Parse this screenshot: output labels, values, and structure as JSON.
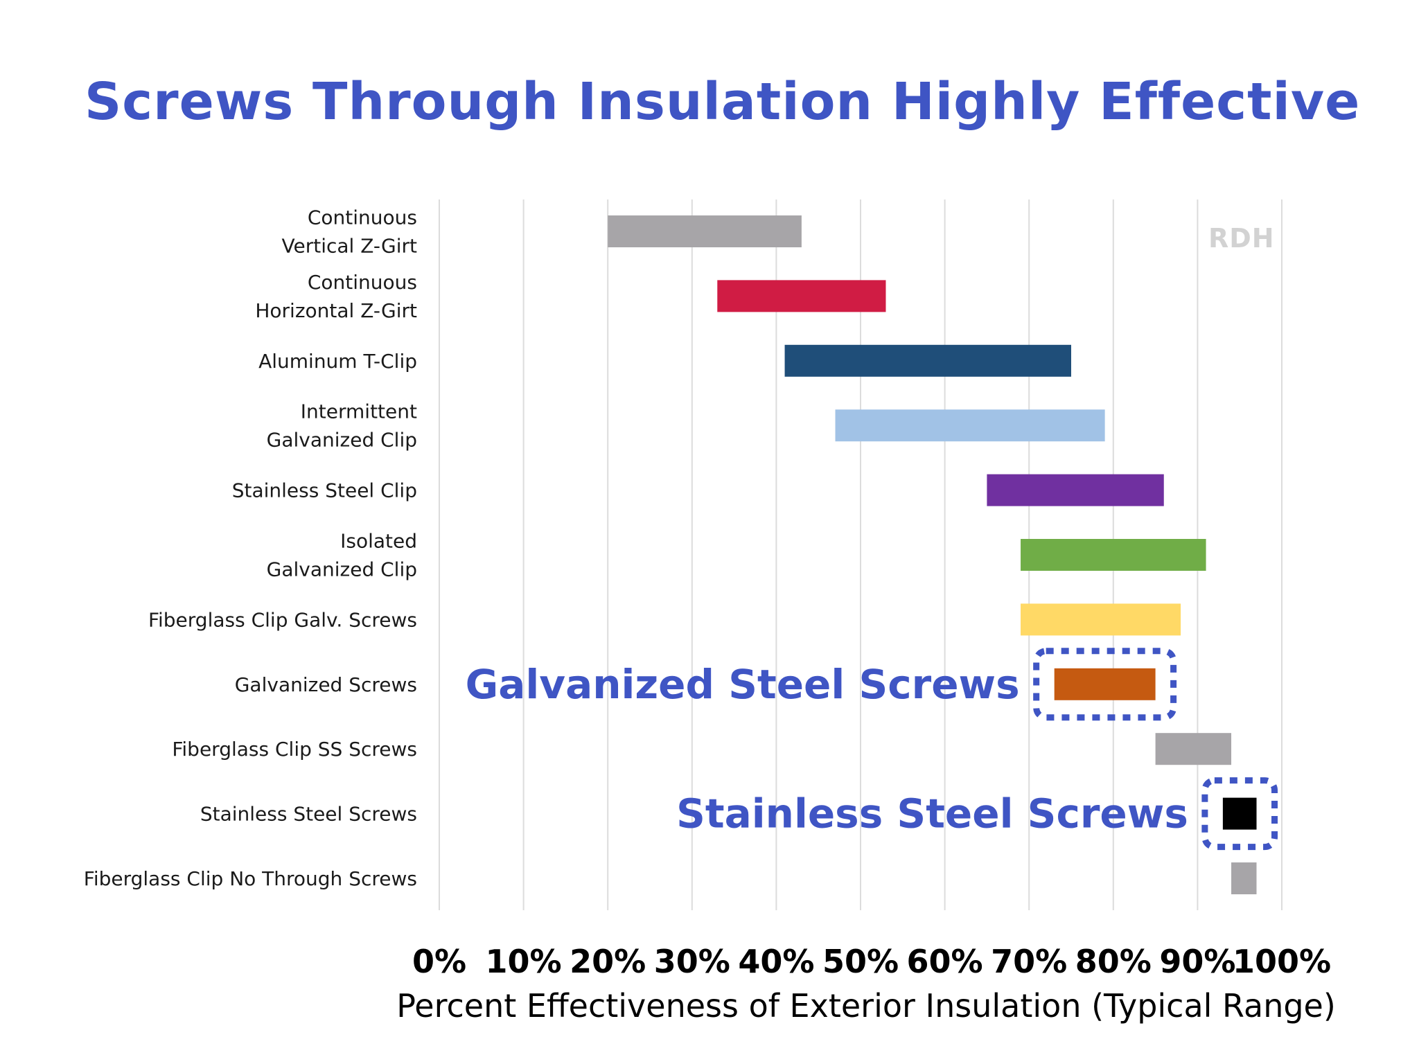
{
  "chart_data": {
    "type": "bar",
    "orientation": "horizontal-range",
    "title": "Screws Through Insulation Highly Effective",
    "xlabel": "Percent Effectiveness of Exterior Insulation (Typical Range)",
    "xlim": [
      0,
      100
    ],
    "x_ticks": [
      "0%",
      "10%",
      "20%",
      "30%",
      "40%",
      "50%",
      "60%",
      "70%",
      "80%",
      "90%",
      "100%"
    ],
    "grid": "vertical",
    "watermark": "RDH",
    "categories": [
      {
        "label": [
          "Continuous",
          "Vertical Z-Girt"
        ],
        "low": 20,
        "high": 43,
        "color": "#a7a5a8"
      },
      {
        "label": [
          "Continuous",
          "Horizontal Z-Girt"
        ],
        "low": 33,
        "high": 53,
        "color": "#d01c44"
      },
      {
        "label": [
          "Aluminum T-Clip"
        ],
        "low": 41,
        "high": 75,
        "color": "#1f4e79"
      },
      {
        "label": [
          "Intermittent",
          "Galvanized Clip"
        ],
        "low": 47,
        "high": 79,
        "color": "#a1c2e6"
      },
      {
        "label": [
          "Stainless Steel Clip"
        ],
        "low": 65,
        "high": 86,
        "color": "#7030a0"
      },
      {
        "label": [
          "Isolated",
          "Galvanized Clip"
        ],
        "low": 69,
        "high": 91,
        "color": "#70ad47"
      },
      {
        "label": [
          "Fiberglass Clip Galv. Screws"
        ],
        "low": 69,
        "high": 88,
        "color": "#ffd966"
      },
      {
        "label": [
          "Galvanized Screws"
        ],
        "low": 73,
        "high": 85,
        "color": "#c55a11"
      },
      {
        "label": [
          "Fiberglass Clip SS Screws"
        ],
        "low": 85,
        "high": 94,
        "color": "#a7a5a8"
      },
      {
        "label": [
          "Stainless Steel Screws"
        ],
        "low": 93,
        "high": 97,
        "color": "#000000"
      },
      {
        "label": [
          "Fiberglass Clip No Through Screws"
        ],
        "low": 94,
        "high": 97,
        "color": "#a7a5a8"
      }
    ],
    "annotations": [
      {
        "text": "Galvanized Steel Screws",
        "target": 7
      },
      {
        "text": "Stainless Steel Screws",
        "target": 9
      }
    ]
  }
}
